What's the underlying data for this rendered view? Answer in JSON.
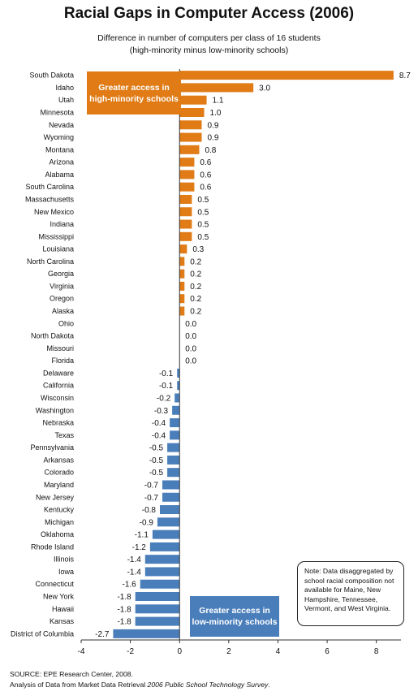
{
  "chart_data": {
    "type": "bar",
    "orientation": "horizontal",
    "title": "Racial Gaps in Computer Access (2006)",
    "subtitle": "Difference in number of computers per class  of 16 students",
    "subtitle2": "(high-minority minus low-minority  schools)",
    "categories": [
      "South Dakota",
      "Idaho",
      "Utah",
      "Minnesota",
      "Nevada",
      "Wyoming",
      "Montana",
      "Arizona",
      "Alabama",
      "South Carolina",
      "Massachusetts",
      "New Mexico",
      "Indiana",
      "Mississippi",
      "Louisiana",
      "North Carolina",
      "Georgia",
      "Virginia",
      "Oregon",
      "Alaska",
      "Ohio",
      "North Dakota",
      "Missouri",
      "Florida",
      "Delaware",
      "California",
      "Wisconsin",
      "Washington",
      "Nebraska",
      "Texas",
      "Pennsylvania",
      "Arkansas",
      "Colorado",
      "Maryland",
      "New Jersey",
      "Kentucky",
      "Michigan",
      "Oklahoma",
      "Rhode Island",
      "Illinois",
      "Iowa",
      "Connecticut",
      "New York",
      "Hawaii",
      "Kansas",
      "District of Columbia"
    ],
    "values": [
      8.7,
      3.0,
      1.1,
      1.0,
      0.9,
      0.9,
      0.8,
      0.6,
      0.6,
      0.6,
      0.5,
      0.5,
      0.5,
      0.5,
      0.3,
      0.2,
      0.2,
      0.2,
      0.2,
      0.2,
      0.0,
      0.0,
      0.0,
      0.0,
      -0.1,
      -0.1,
      -0.2,
      -0.3,
      -0.4,
      -0.4,
      -0.5,
      -0.5,
      -0.5,
      -0.7,
      -0.7,
      -0.8,
      -0.9,
      -1.1,
      -1.2,
      -1.4,
      -1.4,
      -1.6,
      -1.8,
      -1.8,
      -1.8,
      -2.7
    ],
    "value_labels": [
      "8.7",
      "3.0",
      "1.1",
      "1.0",
      "0.9",
      "0.9",
      "0.8",
      "0.6",
      "0.6",
      "0.6",
      "0.5",
      "0.5",
      "0.5",
      "0.5",
      "0.3",
      "0.2",
      "0.2",
      "0.2",
      "0.2",
      "0.2",
      "0.0",
      "0.0",
      "0.0",
      "0.0",
      "-0.1",
      "-0.1",
      "-0.2",
      "-0.3",
      "-0.4",
      "-0.4",
      "-0.5",
      "-0.5",
      "-0.5",
      "-0.7",
      "-0.7",
      "-0.8",
      "-0.9",
      "-1.1",
      "-1.2",
      "-1.4",
      "-1.4",
      "-1.6",
      "-1.8",
      "-1.8",
      "-1.8",
      "-2.7"
    ],
    "xlim": [
      -4,
      9
    ],
    "xticks": [
      -4,
      -2,
      0,
      2,
      4,
      6,
      8
    ],
    "grid": false,
    "colors": {
      "positive": "#e07b16",
      "negative": "#4a7ebb"
    },
    "annotations": {
      "high": "Greater access in high-minority schools",
      "low": "Greater access in low-minority schools",
      "note": "Note:  Data disaggregated by school racial composition not available for Maine, New Hampshire, Tennessee, Vermont, and West Virginia."
    }
  },
  "source": {
    "line1": "SOURCE:  EPE Research Center, 2008.",
    "line2_prefix": "Analysis of Data from Market Data Retrieval ",
    "line2_italic": "2006 Public School Technology Survey",
    "line2_suffix": "."
  }
}
